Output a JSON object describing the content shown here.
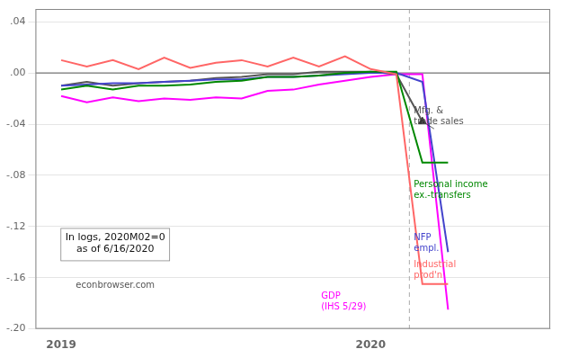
{
  "chart_data": {
    "type": "line",
    "x": [
      2019.0,
      2019.083,
      2019.167,
      2019.25,
      2019.333,
      2019.417,
      2019.5,
      2019.583,
      2019.667,
      2019.75,
      2019.833,
      2019.917,
      2020.0,
      2020.083,
      2020.167,
      2020.25
    ],
    "series": [
      {
        "name": "Industrial\nprod'n",
        "color": "#ff6666",
        "values": [
          0.01,
          0.005,
          0.01,
          0.003,
          0.012,
          0.004,
          0.008,
          0.01,
          0.005,
          0.012,
          0.005,
          0.013,
          0.003,
          -0.001,
          -0.165,
          -0.165
        ]
      },
      {
        "name": "Personal income\nex.-transfers",
        "color": "#008800",
        "values": [
          -0.013,
          -0.01,
          -0.013,
          -0.01,
          -0.01,
          -0.009,
          -0.007,
          -0.006,
          -0.003,
          -0.003,
          -0.002,
          0.0,
          0.001,
          0.001,
          -0.07,
          -0.07
        ]
      },
      {
        "name": "NFP\nempl.",
        "color": "#4444cc",
        "values": [
          -0.01,
          -0.009,
          -0.008,
          -0.008,
          -0.007,
          -0.006,
          -0.005,
          -0.005,
          -0.003,
          -0.003,
          -0.002,
          -0.001,
          0.0,
          0.0,
          -0.007,
          -0.14
        ]
      },
      {
        "name": "Mfg. &\ntrade sales",
        "color": "#555555",
        "values": [
          -0.01,
          -0.007,
          -0.01,
          -0.008,
          -0.007,
          -0.006,
          -0.004,
          -0.003,
          -0.001,
          -0.001,
          0.001,
          0.001,
          0.001,
          -0.001,
          -0.038,
          null
        ]
      },
      {
        "type": "scatter",
        "marker": "triangle",
        "color": "#333333",
        "x": [
          2020.167
        ],
        "values": [
          -0.038
        ]
      },
      {
        "name": "GDP\n(IHS 5/29)",
        "color": "#ff00ff",
        "values": [
          -0.018,
          -0.023,
          -0.019,
          -0.022,
          -0.02,
          -0.021,
          -0.019,
          -0.02,
          -0.014,
          -0.013,
          -0.009,
          -0.006,
          -0.003,
          -0.001,
          -0.001,
          -0.185
        ]
      }
    ],
    "xlim": [
      2018.917,
      2020.58
    ],
    "ylim": [
      -0.2,
      0.05
    ],
    "xticks": [
      2019,
      2020
    ],
    "yticks": [
      {
        "value": 0.04,
        "label": ".04"
      },
      {
        "value": 0.0,
        "label": ".00"
      },
      {
        "value": -0.04,
        "label": "-.04"
      },
      {
        "value": -0.08,
        "label": "-.08"
      },
      {
        "value": -0.12,
        "label": "-.12"
      },
      {
        "value": -0.16,
        "label": "-.16"
      },
      {
        "value": -0.2,
        "label": "-.20"
      }
    ],
    "grid": "y",
    "hline": 0.0,
    "vline": 2020.125,
    "annotations": [
      "In logs, 2020M02=0\nas of 6/16/2020",
      "econbrowser.com"
    ]
  }
}
